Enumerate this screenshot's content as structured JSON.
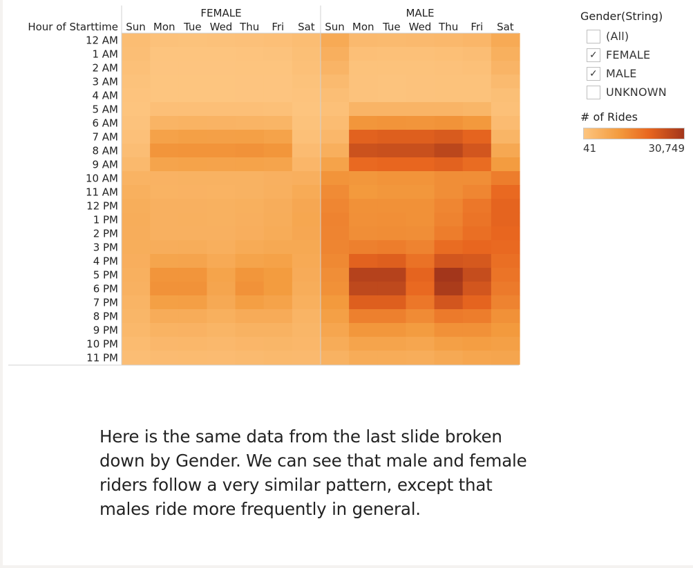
{
  "legend": {
    "filter_title": "Gender(String)",
    "options": [
      {
        "label": "(All)",
        "checked": false
      },
      {
        "label": "FEMALE",
        "checked": true
      },
      {
        "label": "MALE",
        "checked": true
      },
      {
        "label": "UNKNOWN",
        "checked": false
      }
    ],
    "color_title": "# of Rides",
    "color_min": "41",
    "color_max": "30,749"
  },
  "caption": "Here is the same data from the last slide broken down by Gender. We can see that male and female riders follow a very similar pattern, except that males ride more frequently in general.",
  "chart_data": {
    "type": "heatmap",
    "row_header": "Hour of Starttime",
    "panels": [
      "FEMALE",
      "MALE"
    ],
    "days": [
      "Sun",
      "Mon",
      "Tue",
      "Wed",
      "Thu",
      "Fri",
      "Sat"
    ],
    "hours": [
      "12 AM",
      "1 AM",
      "2 AM",
      "3 AM",
      "4 AM",
      "5 AM",
      "6 AM",
      "7 AM",
      "8 AM",
      "9 AM",
      "10 AM",
      "11 AM",
      "12 PM",
      "1 PM",
      "2 PM",
      "3 PM",
      "4 PM",
      "5 PM",
      "6 PM",
      "7 PM",
      "8 PM",
      "9 PM",
      "10 PM",
      "11 PM"
    ],
    "color_min": 41,
    "color_max": 30749,
    "colors": [
      "#fdc580",
      "#f39b3e",
      "#e8661f",
      "#a3361b"
    ],
    "values": {
      "FEMALE": [
        [
          2200,
          1000,
          900,
          1000,
          1200,
          1500,
          2200
        ],
        [
          1800,
          400,
          350,
          400,
          500,
          700,
          1700
        ],
        [
          1400,
          250,
          200,
          250,
          300,
          400,
          1300
        ],
        [
          900,
          150,
          150,
          150,
          200,
          250,
          900
        ],
        [
          500,
          150,
          150,
          150,
          200,
          250,
          500
        ],
        [
          400,
          1500,
          1500,
          1500,
          1500,
          1400,
          400
        ],
        [
          700,
          4500,
          4700,
          4600,
          4500,
          4200,
          800
        ],
        [
          1200,
          9000,
          9500,
          9400,
          9500,
          8800,
          1400
        ],
        [
          2000,
          11800,
          12000,
          12000,
          12300,
          11600,
          2500
        ],
        [
          3200,
          8500,
          8800,
          8700,
          8800,
          8500,
          3800
        ],
        [
          4700,
          4800,
          5000,
          4900,
          5000,
          5300,
          5600
        ],
        [
          5500,
          4700,
          4800,
          4700,
          4900,
          5400,
          6800
        ],
        [
          6000,
          5300,
          5300,
          5200,
          5500,
          6100,
          7600
        ],
        [
          6200,
          5300,
          5400,
          5200,
          5600,
          6200,
          7800
        ],
        [
          6100,
          5300,
          5300,
          5300,
          5800,
          6500,
          7600
        ],
        [
          6000,
          6100,
          6300,
          5700,
          6800,
          7300,
          7300
        ],
        [
          5800,
          8300,
          8400,
          7000,
          8600,
          9100,
          7000
        ],
        [
          5400,
          11800,
          11800,
          8600,
          11600,
          10600,
          6600
        ],
        [
          5100,
          12300,
          12400,
          8200,
          12400,
          10600,
          6200
        ],
        [
          4500,
          9600,
          9700,
          7200,
          9800,
          8800,
          5500
        ],
        [
          3900,
          6400,
          6400,
          5500,
          6600,
          6600,
          4500
        ],
        [
          3400,
          4700,
          4800,
          4200,
          5000,
          5000,
          4000
        ],
        [
          2600,
          3500,
          3600,
          3300,
          3800,
          4000,
          3600
        ],
        [
          2000,
          2500,
          2600,
          2500,
          2800,
          3200,
          3000
        ]
      ],
      "MALE": [
        [
          7000,
          3000,
          2800,
          3000,
          3300,
          3800,
          7000
        ],
        [
          5600,
          1500,
          1300,
          1400,
          1600,
          2000,
          5500
        ],
        [
          4300,
          900,
          800,
          900,
          1000,
          1300,
          4300
        ],
        [
          2800,
          700,
          600,
          700,
          800,
          900,
          2800
        ],
        [
          1800,
          700,
          600,
          700,
          800,
          900,
          1700
        ],
        [
          1300,
          4300,
          4300,
          4300,
          4300,
          4000,
          1300
        ],
        [
          2300,
          11600,
          12000,
          11800,
          12200,
          11200,
          2500
        ],
        [
          3600,
          21000,
          21500,
          21500,
          22500,
          20500,
          4200
        ],
        [
          5700,
          24500,
          25000,
          25000,
          27000,
          23500,
          7500
        ],
        [
          8800,
          19500,
          20000,
          20000,
          21000,
          19000,
          10500
        ],
        [
          12000,
          11500,
          12000,
          12000,
          13000,
          13000,
          16000
        ],
        [
          13500,
          11000,
          11500,
          11500,
          13000,
          14500,
          19500
        ],
        [
          14500,
          12500,
          12500,
          12500,
          14500,
          17000,
          20500
        ],
        [
          15000,
          12700,
          12800,
          12600,
          15000,
          17500,
          20500
        ],
        [
          14800,
          13000,
          13200,
          13000,
          16000,
          18500,
          20000
        ],
        [
          14600,
          15500,
          16000,
          15000,
          19000,
          20000,
          19500
        ],
        [
          14000,
          21000,
          21500,
          18000,
          23500,
          23000,
          18500
        ],
        [
          13000,
          28000,
          28000,
          20500,
          30749,
          25500,
          17500
        ],
        [
          12500,
          26500,
          26500,
          19500,
          29500,
          23500,
          16500
        ],
        [
          11000,
          21500,
          21500,
          17000,
          23500,
          20500,
          15000
        ],
        [
          9500,
          15500,
          15500,
          13500,
          16500,
          16000,
          12500
        ],
        [
          8000,
          11500,
          11500,
          10500,
          12500,
          12500,
          11000
        ],
        [
          6500,
          8500,
          8500,
          8000,
          9500,
          10000,
          9500
        ],
        [
          5000,
          6500,
          6500,
          6200,
          7200,
          8000,
          8200
        ]
      ]
    }
  }
}
